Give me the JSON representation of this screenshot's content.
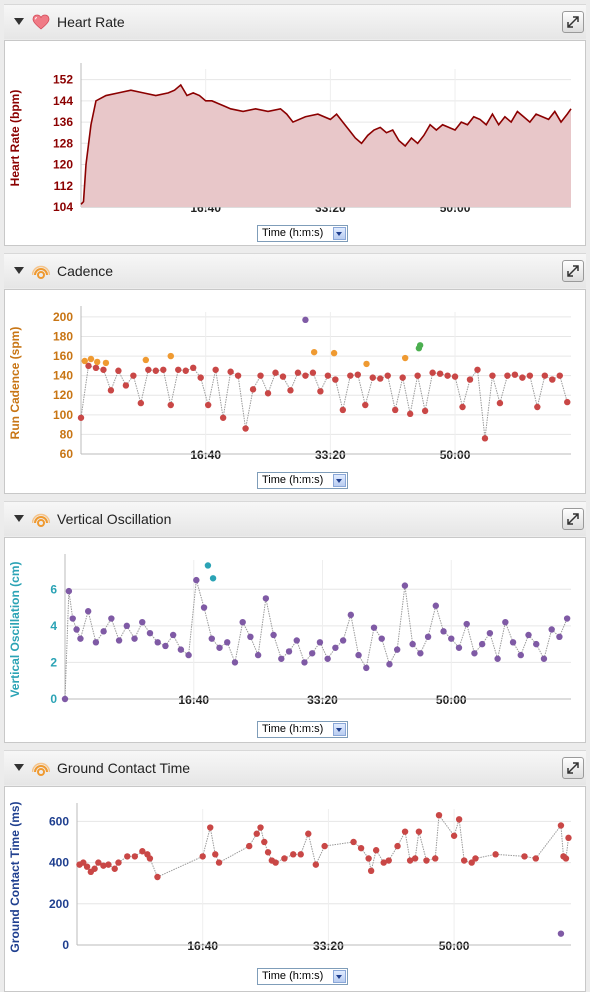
{
  "panels": [
    {
      "id": "hr",
      "title": "Heart Rate",
      "icon": "heart-icon",
      "select_value": "Time (h:m:s)",
      "color": "#8b0000",
      "chart_data": {
        "type": "area",
        "ylabel": "Heart Rate (bpm)",
        "ylim": [
          104,
          156
        ],
        "yticks": [
          "104",
          "112",
          "120",
          "128",
          "136",
          "144",
          "152"
        ],
        "xticks": [
          "16:40",
          "33:20",
          "50:00"
        ],
        "xtick_seconds": [
          1000,
          2000,
          3000
        ],
        "xlim": [
          0,
          3930
        ],
        "fill_color": "#e8c7c9",
        "line_color": "#8b0000",
        "x_seconds": [
          0,
          20,
          40,
          80,
          120,
          200,
          300,
          400,
          500,
          600,
          700,
          750,
          800,
          850,
          900,
          950,
          1000,
          1050,
          1100,
          1150,
          1200,
          1300,
          1400,
          1500,
          1600,
          1650,
          1700,
          1800,
          1900,
          2000,
          2050,
          2100,
          2150,
          2200,
          2250,
          2300,
          2350,
          2400,
          2450,
          2500,
          2550,
          2600,
          2650,
          2700,
          2750,
          2800,
          2850,
          2900,
          2950,
          3000,
          3050,
          3100,
          3150,
          3200,
          3250,
          3300,
          3350,
          3400,
          3450,
          3500,
          3550,
          3600,
          3650,
          3700,
          3750,
          3800,
          3850,
          3900,
          3930
        ],
        "values": [
          105,
          106,
          120,
          135,
          144,
          146,
          147,
          148,
          147,
          146,
          147,
          148,
          150,
          146,
          147,
          146,
          144,
          144,
          143,
          142,
          141,
          140,
          141,
          140,
          141,
          139,
          136,
          138,
          139,
          137,
          139,
          136,
          133,
          130,
          128,
          131,
          133,
          134,
          132,
          133,
          129,
          127,
          130,
          128,
          131,
          135,
          133,
          135,
          134,
          133,
          136,
          135,
          138,
          137,
          135,
          139,
          135,
          138,
          136,
          140,
          138,
          136,
          139,
          138,
          137,
          140,
          136,
          139,
          141
        ]
      }
    },
    {
      "id": "cad",
      "title": "Cadence",
      "icon": "runner-icon",
      "select_value": "Time (h:m:s)",
      "color": "#c87514",
      "chart_data": {
        "type": "scatter",
        "ylabel": "Run Cadence (spm)",
        "ylim": [
          60,
          205
        ],
        "yticks": [
          "60",
          "80",
          "100",
          "120",
          "140",
          "160",
          "180",
          "200"
        ],
        "xticks": [
          "16:40",
          "33:20",
          "50:00"
        ],
        "xtick_seconds": [
          1000,
          2000,
          3000
        ],
        "xlim": [
          0,
          3930
        ],
        "series": [
          {
            "color": "#c94746",
            "x": [
              0,
              60,
              120,
              180,
              240,
              300,
              360,
              420,
              480,
              540,
              600,
              660,
              720,
              780,
              840,
              900,
              960,
              1020,
              1080,
              1140,
              1200,
              1260,
              1320,
              1380,
              1440,
              1500,
              1560,
              1620,
              1680,
              1740,
              1800,
              1860,
              1920,
              1980,
              2040,
              2100,
              2160,
              2220,
              2280,
              2340,
              2400,
              2460,
              2520,
              2580,
              2640,
              2700,
              2760,
              2820,
              2880,
              2940,
              3000,
              3060,
              3120,
              3180,
              3240,
              3300,
              3360,
              3420,
              3480,
              3540,
              3600,
              3660,
              3720,
              3780,
              3840,
              3900
            ],
            "y": [
              97,
              150,
              148,
              146,
              125,
              145,
              130,
              140,
              112,
              146,
              145,
              146,
              110,
              146,
              145,
              148,
              138,
              110,
              146,
              97,
              144,
              140,
              86,
              126,
              140,
              122,
              143,
              139,
              125,
              143,
              140,
              143,
              124,
              140,
              136,
              105,
              140,
              141,
              110,
              138,
              137,
              140,
              105,
              138,
              101,
              140,
              104,
              143,
              142,
              140,
              139,
              108,
              136,
              146,
              76,
              140,
              112,
              140,
              141,
              138,
              140,
              108,
              140,
              136,
              140,
              113
            ]
          },
          {
            "color": "#ef9a31",
            "x": [
              30,
              80,
              130,
              200,
              520,
              720,
              1870,
              2030,
              2290,
              2600
            ],
            "y": [
              155,
              157,
              154,
              153,
              156,
              160,
              164,
              163,
              152,
              158
            ]
          },
          {
            "color": "#7f5aa5",
            "x": [
              1800
            ],
            "y": [
              197
            ]
          },
          {
            "color": "#4caf50",
            "x": [
              2710,
              2720
            ],
            "y": [
              168,
              171
            ]
          }
        ]
      }
    },
    {
      "id": "vo",
      "title": "Vertical Oscillation",
      "icon": "runner-icon",
      "select_value": "Time (h:m:s)",
      "color": "#2ba3b5",
      "chart_data": {
        "type": "scatter",
        "ylabel": "Vertical Oscillation (cm)",
        "ylim": [
          0,
          7.6
        ],
        "yticks": [
          "0",
          "2",
          "4",
          "6"
        ],
        "xticks": [
          "16:40",
          "33:20",
          "50:00"
        ],
        "xtick_seconds": [
          1000,
          2000,
          3000
        ],
        "xlim": [
          0,
          3930
        ],
        "series": [
          {
            "color": "#7f5aa5",
            "x": [
              0,
              30,
              60,
              90,
              120,
              180,
              240,
              300,
              360,
              420,
              480,
              540,
              600,
              660,
              720,
              780,
              840,
              900,
              960,
              1020,
              1080,
              1140,
              1200,
              1260,
              1320,
              1380,
              1440,
              1500,
              1560,
              1620,
              1680,
              1740,
              1800,
              1860,
              1920,
              1980,
              2040,
              2100,
              2160,
              2220,
              2280,
              2340,
              2400,
              2460,
              2520,
              2580,
              2640,
              2700,
              2760,
              2820,
              2880,
              2940,
              3000,
              3060,
              3120,
              3180,
              3240,
              3300,
              3360,
              3420,
              3480,
              3540,
              3600,
              3660,
              3720,
              3780,
              3840,
              3900
            ],
            "y": [
              0,
              5.9,
              4.4,
              3.8,
              3.3,
              4.8,
              3.1,
              3.7,
              4.4,
              3.2,
              4.0,
              3.3,
              4.2,
              3.6,
              3.1,
              2.9,
              3.5,
              2.7,
              2.4,
              6.5,
              5.0,
              3.3,
              2.8,
              3.1,
              2.0,
              4.2,
              3.4,
              2.4,
              5.5,
              3.5,
              2.2,
              2.6,
              3.2,
              2.0,
              2.5,
              3.1,
              2.2,
              2.8,
              3.2,
              4.6,
              2.4,
              1.7,
              3.9,
              3.3,
              1.9,
              2.7,
              6.2,
              3.0,
              2.5,
              3.4,
              5.1,
              3.7,
              3.3,
              2.8,
              4.1,
              2.5,
              3.0,
              3.6,
              2.2,
              4.2,
              3.1,
              2.4,
              3.5,
              3.0,
              2.2,
              3.8,
              3.4,
              4.4
            ]
          },
          {
            "color": "#2ba3b5",
            "x": [
              1110,
              1150
            ],
            "y": [
              7.3,
              6.6
            ]
          }
        ]
      }
    },
    {
      "id": "gct",
      "title": "Ground Contact Time",
      "icon": "runner-icon",
      "select_value": "Time (h:m:s)",
      "color": "#1f3f8f",
      "chart_data": {
        "type": "scatter",
        "ylabel": "Ground Contact Time (ms)",
        "ylim": [
          0,
          660
        ],
        "yticks": [
          "0",
          "200",
          "400",
          "600"
        ],
        "xticks": [
          "16:40",
          "33:20",
          "50:00"
        ],
        "xtick_seconds": [
          1000,
          2000,
          3000
        ],
        "xlim": [
          0,
          3930
        ],
        "series": [
          {
            "color": "#c94746",
            "x": [
              20,
              50,
              80,
              110,
              140,
              170,
              210,
              250,
              300,
              330,
              400,
              460,
              520,
              560,
              580,
              640,
              1000,
              1060,
              1100,
              1130,
              1370,
              1430,
              1460,
              1490,
              1520,
              1550,
              1580,
              1650,
              1720,
              1780,
              1840,
              1900,
              1970,
              2200,
              2260,
              2320,
              2340,
              2380,
              2440,
              2480,
              2550,
              2610,
              2650,
              2690,
              2720,
              2780,
              2850,
              2880,
              3000,
              3040,
              3080,
              3140,
              3170,
              3330,
              3560,
              3650,
              3850,
              3870,
              3890,
              3910
            ],
            "y": [
              390,
              400,
              380,
              355,
              370,
              400,
              385,
              390,
              370,
              400,
              430,
              430,
              455,
              440,
              420,
              330,
              430,
              570,
              440,
              400,
              480,
              540,
              570,
              500,
              450,
              410,
              400,
              420,
              440,
              440,
              540,
              390,
              480,
              500,
              470,
              420,
              360,
              460,
              400,
              410,
              480,
              550,
              410,
              420,
              550,
              410,
              420,
              630,
              530,
              610,
              410,
              400,
              420,
              440,
              430,
              420,
              580,
              430,
              420,
              520
            ]
          },
          {
            "color": "#7f5aa5",
            "x": [
              3850
            ],
            "y": [
              55
            ]
          }
        ]
      }
    }
  ]
}
